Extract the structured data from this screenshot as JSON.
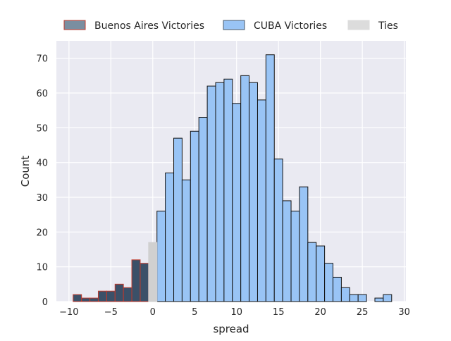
{
  "chart_data": {
    "type": "bar",
    "title": "",
    "xlabel": "spread",
    "ylabel": "Count",
    "xlim": [
      -11.5,
      30.2
    ],
    "ylim": [
      0,
      75
    ],
    "xticks": [
      -10,
      -5,
      0,
      5,
      10,
      15,
      20,
      25,
      30
    ],
    "yticks": [
      0,
      10,
      20,
      30,
      40,
      50,
      60,
      70
    ],
    "grid": true,
    "legend_position": "top",
    "colors": {
      "background": "#eaeaf2",
      "grid": "#ffffff",
      "buenos_aires_fill": "#3b5068",
      "buenos_aires_edge": "#c0392b",
      "buenos_aires_legend_fill": "#7a8ea0",
      "cuba_fill": "#99c4f5",
      "cuba_edge": "#111111",
      "ties_fill": "#d0d0d0",
      "ties_legend_fill": "#dcdcdc"
    },
    "bin_width": 1,
    "series": [
      {
        "name": "Buenos Aires Victories",
        "key": "buenos_aires",
        "x": [
          -9,
          -8,
          -7,
          -6,
          -5,
          -4,
          -3,
          -2,
          -1
        ],
        "values": [
          2,
          1,
          1,
          3,
          3,
          5,
          4,
          12,
          11
        ]
      },
      {
        "name": "CUBA Victories",
        "key": "cuba",
        "x": [
          1,
          2,
          3,
          4,
          5,
          6,
          7,
          8,
          9,
          10,
          11,
          12,
          13,
          14,
          15,
          16,
          17,
          18,
          19,
          20,
          21,
          22,
          23,
          24,
          25,
          27,
          28
        ],
        "values": [
          26,
          37,
          47,
          35,
          49,
          53,
          62,
          63,
          64,
          57,
          65,
          63,
          58,
          71,
          41,
          29,
          26,
          33,
          17,
          16,
          11,
          7,
          4,
          2,
          2,
          1,
          2
        ]
      },
      {
        "name": "Ties",
        "key": "ties",
        "x": [
          0
        ],
        "values": [
          17
        ]
      }
    ]
  }
}
